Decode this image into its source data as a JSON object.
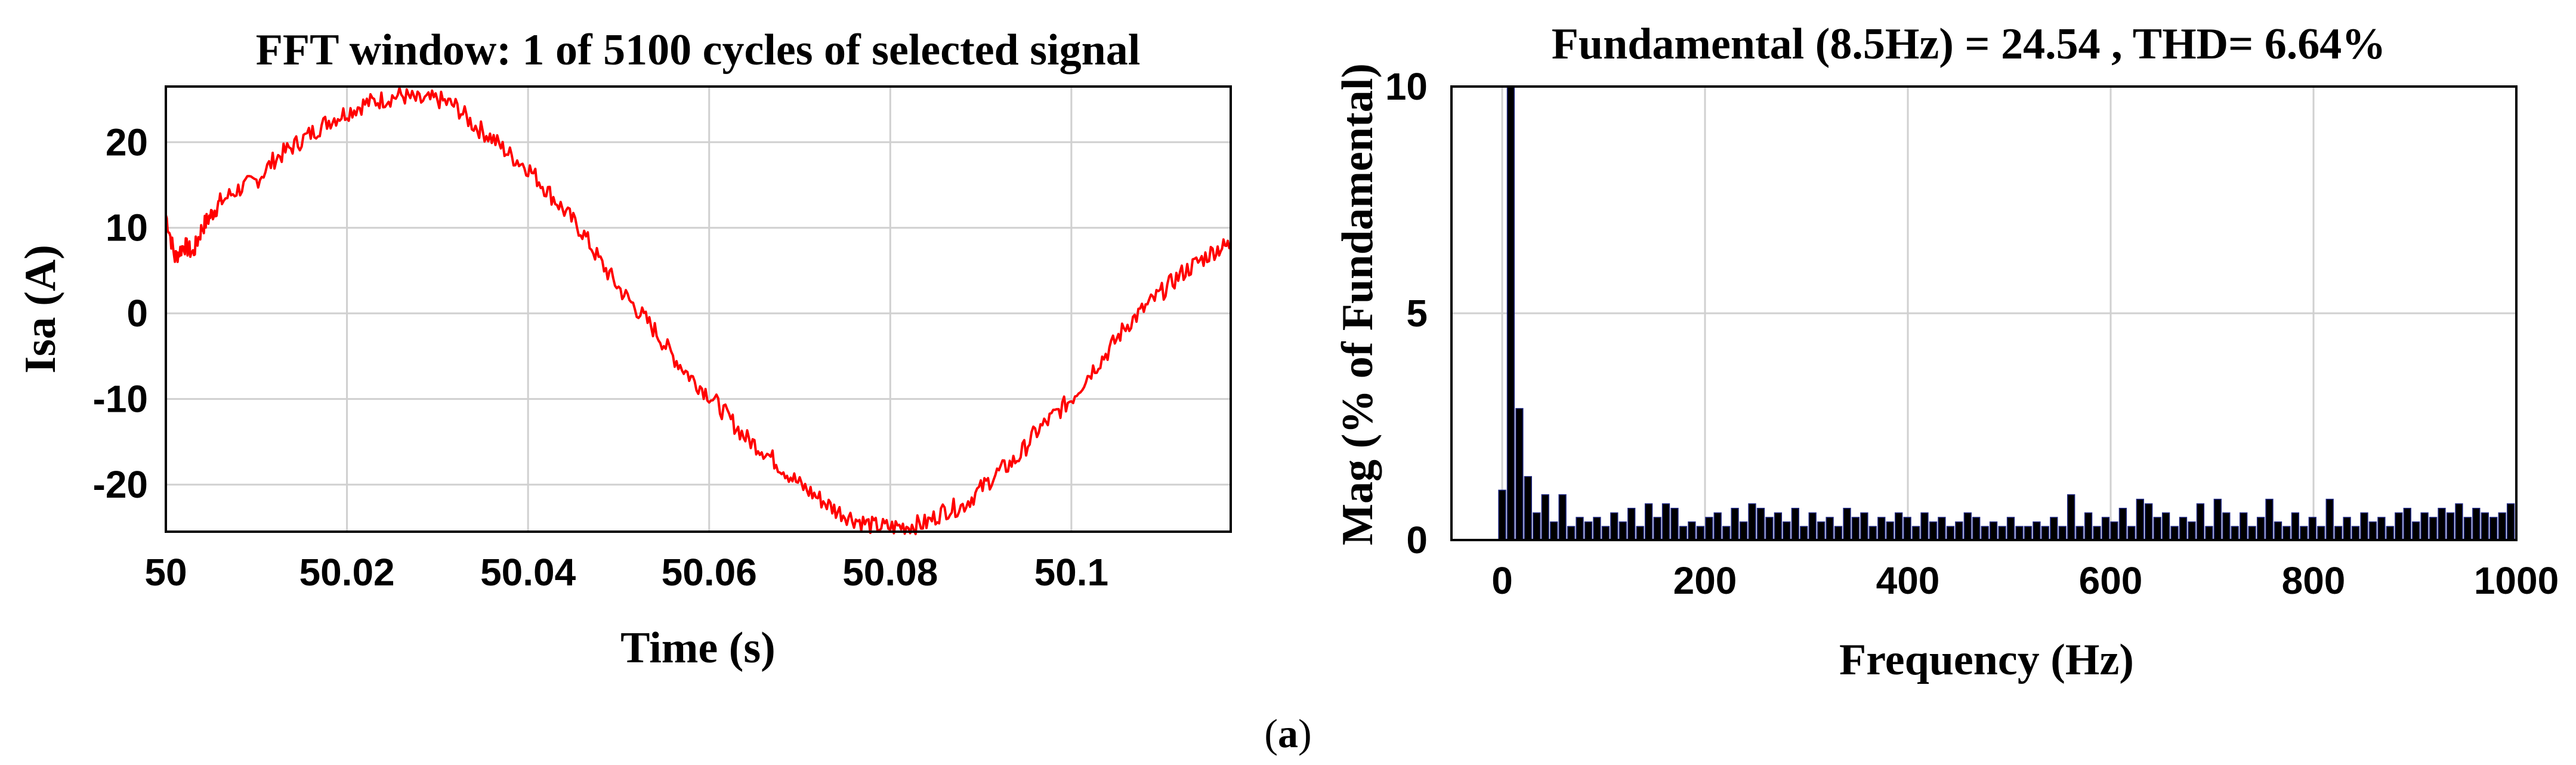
{
  "caption": {
    "open": "(",
    "letter": "a",
    "close": ")"
  },
  "chart_data": [
    {
      "type": "line",
      "title": "FFT window: 1 of 5100 cycles of selected signal",
      "xlabel": "Time (s)",
      "ylabel": "Isa (A)",
      "xlim": [
        50,
        50.1176
      ],
      "ylim": [
        -25.5,
        26.5
      ],
      "xticks": [
        50,
        50.02,
        50.04,
        50.06,
        50.08,
        50.1
      ],
      "xtick_labels": [
        "50",
        "50.02",
        "50.04",
        "50.06",
        "50.08",
        "50.1"
      ],
      "yticks": [
        20,
        10,
        0,
        -10,
        -20
      ],
      "ytick_labels": [
        "20",
        "10",
        "0",
        "-10",
        "-20"
      ],
      "grid": true,
      "series": [
        {
          "color": "#ff0000",
          "x": [
            50.0,
            50.001,
            50.002,
            50.003,
            50.004,
            50.005,
            50.006,
            50.008,
            50.01,
            50.012,
            50.014,
            50.016,
            50.018,
            50.02,
            50.022,
            50.024,
            50.026,
            50.028,
            50.03,
            50.032,
            50.034,
            50.036,
            50.038,
            50.04,
            50.042,
            50.044,
            50.046,
            50.048,
            50.05,
            50.052,
            50.054,
            50.056,
            50.058,
            50.06,
            50.062,
            50.064,
            50.066,
            50.068,
            50.07,
            50.072,
            50.074,
            50.076,
            50.078,
            50.08,
            50.082,
            50.084,
            50.086,
            50.088,
            50.09,
            50.092,
            50.094,
            50.096,
            50.098,
            50.1,
            50.102,
            50.104,
            50.106,
            50.108,
            50.11,
            50.112,
            50.114,
            50.116,
            50.1176
          ],
          "y": [
            11.5,
            6.5,
            8.0,
            7.0,
            10.0,
            11.5,
            13.0,
            14.5,
            15.5,
            18.0,
            19.5,
            21.0,
            22.5,
            23.5,
            24.5,
            25.0,
            25.5,
            24.8,
            25.0,
            24.2,
            22.0,
            20.5,
            18.5,
            17.0,
            14.5,
            12.0,
            9.5,
            6.0,
            3.0,
            0.5,
            -2.0,
            -5.0,
            -7.5,
            -9.5,
            -12.0,
            -14.5,
            -16.0,
            -18.0,
            -20.0,
            -21.5,
            -23.0,
            -24.0,
            -24.8,
            -25.0,
            -24.8,
            -24.5,
            -23.0,
            -22.5,
            -20.5,
            -18.5,
            -17.0,
            -14.0,
            -12.0,
            -10.0,
            -7.0,
            -4.5,
            -1.5,
            0.5,
            2.5,
            4.5,
            6.0,
            7.5,
            8.0
          ]
        }
      ]
    },
    {
      "type": "bar",
      "title": "Fundamental (8.5Hz) = 24.54 , THD= 6.64%",
      "xlabel": "Frequency (Hz)",
      "ylabel": "Mag (% of Fundamental)",
      "xlim": [
        -50,
        1000
      ],
      "ylim": [
        0,
        10
      ],
      "xticks": [
        0,
        200,
        400,
        600,
        800,
        1000
      ],
      "xtick_labels": [
        "0",
        "200",
        "400",
        "600",
        "800",
        "1000"
      ],
      "yticks": [
        0,
        5,
        10
      ],
      "ytick_labels": [
        "0",
        "5",
        "10"
      ],
      "grid": true,
      "bar_color": "#000000",
      "bar_edge_color": "#1a237e",
      "x": [
        0,
        8.5,
        17,
        25.5,
        34,
        42.5,
        51,
        59.5,
        68,
        76.5,
        85,
        93.5,
        102,
        110.5,
        119,
        127.5,
        136,
        144.5,
        153,
        161.5,
        170,
        178.5,
        187,
        195.5,
        204,
        212.5,
        221,
        229.5,
        238,
        246.5,
        255,
        263.5,
        272,
        280.5,
        289,
        297.5,
        306,
        314.5,
        323,
        331.5,
        340,
        348.5,
        357,
        365.5,
        374,
        382.5,
        391,
        399.5,
        408,
        416.5,
        425,
        433.5,
        442,
        450.5,
        459,
        467.5,
        476,
        484.5,
        493,
        501.5,
        510,
        518.5,
        527,
        535.5,
        544,
        552.5,
        561,
        569.5,
        578,
        586.5,
        595,
        603.5,
        612,
        620.5,
        629,
        637.5,
        646,
        654.5,
        663,
        671.5,
        680,
        688.5,
        697,
        705.5,
        714,
        722.5,
        731,
        739.5,
        748,
        756.5,
        765,
        773.5,
        782,
        790.5,
        799,
        807.5,
        816,
        824.5,
        833,
        841.5,
        850,
        858.5,
        867,
        875.5,
        884,
        892.5,
        901,
        909.5,
        918,
        926.5,
        935,
        943.5,
        952,
        960.5,
        969,
        977.5,
        986,
        994.5
      ],
      "values": [
        1.1,
        10.0,
        2.9,
        1.4,
        0.6,
        1.0,
        0.4,
        1.0,
        0.3,
        0.5,
        0.4,
        0.5,
        0.3,
        0.6,
        0.4,
        0.7,
        0.3,
        0.8,
        0.5,
        0.8,
        0.7,
        0.3,
        0.4,
        0.3,
        0.5,
        0.6,
        0.3,
        0.7,
        0.4,
        0.8,
        0.7,
        0.5,
        0.6,
        0.4,
        0.7,
        0.3,
        0.6,
        0.4,
        0.5,
        0.3,
        0.7,
        0.5,
        0.6,
        0.3,
        0.5,
        0.4,
        0.6,
        0.5,
        0.3,
        0.6,
        0.4,
        0.5,
        0.3,
        0.4,
        0.6,
        0.5,
        0.3,
        0.4,
        0.3,
        0.5,
        0.3,
        0.3,
        0.4,
        0.3,
        0.5,
        0.3,
        1.0,
        0.3,
        0.6,
        0.3,
        0.5,
        0.4,
        0.7,
        0.3,
        0.9,
        0.8,
        0.5,
        0.6,
        0.3,
        0.5,
        0.4,
        0.8,
        0.3,
        0.9,
        0.6,
        0.3,
        0.6,
        0.3,
        0.5,
        0.9,
        0.4,
        0.3,
        0.6,
        0.3,
        0.5,
        0.3,
        0.9,
        0.3,
        0.5,
        0.3,
        0.6,
        0.4,
        0.5,
        0.3,
        0.6,
        0.7,
        0.4,
        0.6,
        0.5,
        0.7,
        0.6,
        0.8,
        0.5,
        0.7,
        0.6,
        0.5,
        0.6,
        0.8
      ]
    }
  ]
}
